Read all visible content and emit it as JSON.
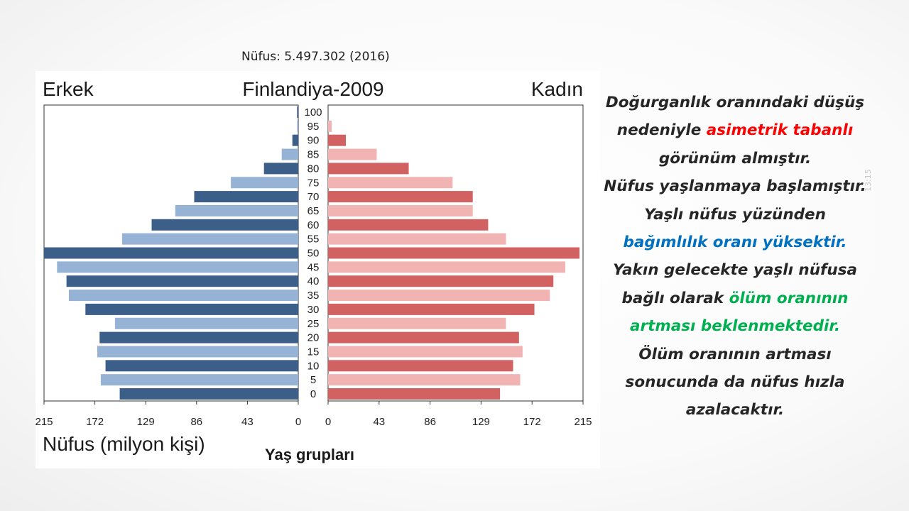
{
  "slide": {
    "subtitle": "Nüfus: 5.497.302 (2016)",
    "slide_number": "13:15"
  },
  "chart_data": {
    "type": "bar",
    "subtype": "population-pyramid",
    "title": "Finlandiya-2009",
    "left_label": "Erkek",
    "right_label": "Kadın",
    "xlabel": "Nüfus (milyon kişi)",
    "center_label": "Yaş grupları",
    "age_groups": [
      "100",
      "95",
      "90",
      "85",
      "80",
      "75",
      "70",
      "65",
      "60",
      "55",
      "50",
      "45",
      "40",
      "35",
      "30",
      "25",
      "20",
      "15",
      "10",
      "5",
      "0"
    ],
    "series": [
      {
        "name": "Erkek",
        "side": "left",
        "values": [
          1,
          1,
          5,
          14,
          29,
          57,
          88,
          104,
          124,
          149,
          215,
          204,
          196,
          194,
          180,
          155,
          168,
          170,
          163,
          167,
          151
        ]
      },
      {
        "name": "Kadın",
        "side": "right",
        "values": [
          0,
          3,
          15,
          41,
          68,
          105,
          122,
          122,
          135,
          150,
          212,
          200,
          190,
          187,
          174,
          150,
          161,
          164,
          156,
          162,
          145
        ]
      }
    ],
    "xlim": [
      0,
      215
    ],
    "ticks": [
      "215",
      "172",
      "129",
      "86",
      "43",
      "0",
      "0",
      "43",
      "86",
      "129",
      "172",
      "215"
    ],
    "colors": {
      "male_dark": "#3b5f88",
      "male_light": "#96b3d6",
      "female_dark": "#d26262",
      "female_light": "#f2b3b3"
    }
  },
  "description": {
    "lines": [
      [
        {
          "text": "Doğurganlık oranındaki düşüş",
          "color": "default"
        }
      ],
      [
        {
          "text": "nedeniyle ",
          "color": "default"
        },
        {
          "text": "asimetrik tabanlı",
          "color": "red"
        }
      ],
      [
        {
          "text": "görünüm almıştır.",
          "color": "default"
        }
      ],
      [
        {
          "text": "Nüfus yaşlanmaya başlamıştır.",
          "color": "default"
        }
      ],
      [
        {
          "text": "Yaşlı nüfus yüzünden",
          "color": "default"
        }
      ],
      [
        {
          "text": "bağımlılık oranı yüksektir.",
          "color": "blue"
        }
      ],
      [
        {
          "text": "Yakın gelecekte yaşlı nüfusa",
          "color": "default"
        }
      ],
      [
        {
          "text": "bağlı olarak ",
          "color": "default"
        },
        {
          "text": "ölüm oranının",
          "color": "green"
        }
      ],
      [
        {
          "text": "artması beklenmektedir.",
          "color": "green"
        }
      ],
      [
        {
          "text": "Ölüm oranının artması",
          "color": "default"
        }
      ],
      [
        {
          "text": "sonucunda da nüfus hızla",
          "color": "default"
        }
      ],
      [
        {
          "text": "azalacaktır.",
          "color": "default"
        }
      ]
    ]
  }
}
